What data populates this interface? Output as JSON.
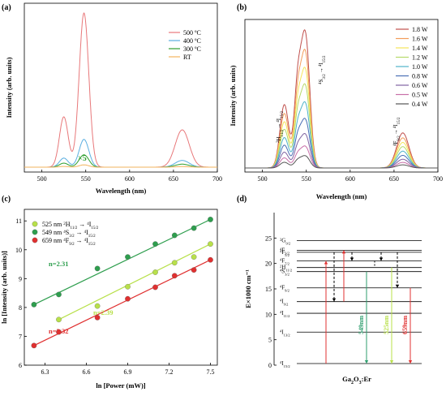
{
  "chart_data": [
    {
      "panel": "(a)",
      "type": "line",
      "xlabel": "Wavelength (nm)",
      "ylabel": "Intensity (arb. units)",
      "xlim": [
        480,
        700
      ],
      "xticks": [
        500,
        550,
        600,
        650,
        700
      ],
      "annotation": "×5",
      "legend": "top-right",
      "series": [
        {
          "name": "500 ºC",
          "color": "#e8787a",
          "scale": 1.0,
          "peaks": [
            [
              525,
              0.31,
              5
            ],
            [
              548,
              0.95,
              5.5
            ],
            [
              660,
              0.23,
              8
            ]
          ]
        },
        {
          "name": "400 ºC",
          "color": "#5aaee0",
          "scale": 0.18,
          "peaks": [
            [
              525,
              0.31,
              5
            ],
            [
              548,
              0.95,
              5.5
            ],
            [
              660,
              0.23,
              8
            ]
          ]
        },
        {
          "name": "300 ºC",
          "color": "#2e9e2e",
          "scale": 0.08,
          "peaks": [
            [
              525,
              0.31,
              5
            ],
            [
              548,
              0.95,
              5.5
            ],
            [
              660,
              0.23,
              8
            ]
          ]
        },
        {
          "name": "RT",
          "color": "#f2b35c",
          "scale": 0.015,
          "peaks": [
            [
              525,
              0.31,
              5
            ],
            [
              548,
              0.95,
              5.5
            ],
            [
              660,
              0.23,
              8
            ]
          ]
        }
      ]
    },
    {
      "panel": "(b)",
      "type": "line",
      "xlabel": "Wavelength (nm)",
      "ylabel": "Intensity (arb. units)",
      "xlim": [
        480,
        700
      ],
      "xticks": [
        500,
        550,
        600,
        650,
        700
      ],
      "legend": "top-right",
      "series": [
        {
          "name": "1.8 W",
          "color": "#c0504d",
          "scale": 1.0
        },
        {
          "name": "1.6 W",
          "color": "#f39c5a",
          "scale": 0.86
        },
        {
          "name": "1.4 W",
          "color": "#f5e65a",
          "scale": 0.73
        },
        {
          "name": "1.2 W",
          "color": "#b5d96a",
          "scale": 0.61
        },
        {
          "name": "1.0 W",
          "color": "#4fb3c9",
          "scale": 0.48
        },
        {
          "name": "0.8 W",
          "color": "#4a6fb5",
          "scale": 0.36
        },
        {
          "name": "0.6 W",
          "color": "#8064a2",
          "scale": 0.25
        },
        {
          "name": "0.5 W",
          "color": "#c86fa8",
          "scale": 0.16
        },
        {
          "name": "0.4 W",
          "color": "#555555",
          "scale": 0.09
        }
      ],
      "peaks": [
        [
          525,
          0.47,
          5
        ],
        [
          540,
          0.55,
          4
        ],
        [
          549,
          0.97,
          5
        ],
        [
          660,
          0.26,
          7
        ]
      ],
      "annotations": {
        "h_a": "2",
        "h_b": "H",
        "h_c": "11/2",
        "h_d": "→",
        "h_e": "4",
        "h_f": "I",
        "h_g": "15/2",
        "s_a": "4",
        "s_b": "S",
        "s_c": "3/2",
        "s_d": "→",
        "s_e": "4",
        "s_f": "I",
        "s_g": "15/2",
        "f_a": "4",
        "f_b": "F",
        "f_c": "9/2",
        "f_d": "→",
        "f_e": "4",
        "f_f": "I",
        "f_g": "15/2"
      }
    },
    {
      "panel": "(c)",
      "type": "scatter",
      "xlabel": "ln [Power (mW)]",
      "ylabel": "ln [Intensity (arb. units)]",
      "xlim": [
        6.15,
        7.55
      ],
      "ylim": [
        6.0,
        11.4
      ],
      "xticks": [
        6.3,
        6.6,
        6.9,
        7.2,
        7.5
      ],
      "yticks": [
        6,
        7,
        8,
        9,
        10,
        11
      ],
      "legend": "top-left",
      "x": [
        6.22,
        6.4,
        6.68,
        6.9,
        7.1,
        7.24,
        7.38,
        7.5
      ],
      "series": [
        {
          "color": "#b8e04a",
          "y": [
            null,
            7.58,
            8.05,
            8.72,
            9.22,
            9.55,
            9.75,
            10.2
          ],
          "fit": [
            [
              6.4,
              7.58
            ],
            [
              7.5,
              10.2
            ]
          ],
          "n": "n=2.39",
          "leg_a": "525 nm ",
          "leg_b": "2",
          "leg_c": "H",
          "leg_d": "11/2",
          "leg_e": " → ",
          "leg_f": "4",
          "leg_g": "I",
          "leg_h": "15/2"
        },
        {
          "color": "#2e9e4e",
          "y": [
            8.1,
            8.45,
            9.35,
            9.75,
            10.2,
            10.5,
            10.75,
            11.05
          ],
          "fit": [
            [
              6.22,
              8.1
            ],
            [
              7.5,
              11.05
            ]
          ],
          "n": "n=2.31",
          "leg_a": "549 nm ",
          "leg_b": "4",
          "leg_c": "S",
          "leg_d": "3/2",
          "leg_e": " → ",
          "leg_f": "4",
          "leg_g": "I",
          "leg_h": "15/2"
        },
        {
          "color": "#e03030",
          "y": [
            6.68,
            7.15,
            7.65,
            8.3,
            8.7,
            9.1,
            9.3,
            9.65
          ],
          "fit": [
            [
              6.22,
              6.68
            ],
            [
              7.5,
              9.65
            ]
          ],
          "n": "n=2.32",
          "leg_a": "659 nm ",
          "leg_b": "4",
          "leg_c": "F",
          "leg_d": "9/2",
          "leg_e": " → ",
          "leg_f": "4",
          "leg_g": "I",
          "leg_h": "15/2"
        }
      ]
    },
    {
      "panel": "(d)",
      "type": "diagram",
      "ylabel": "E×1000 cm⁻¹",
      "xlabel_a": "Ga",
      "xlabel_b": "2",
      "xlabel_c": "O",
      "xlabel_d": "3",
      "xlabel_e": ":Er",
      "ylim": [
        0,
        30
      ],
      "yticks": [
        0,
        5,
        10,
        15,
        20,
        25
      ],
      "levels": [
        {
          "label": "I",
          "sup": "4",
          "sub": "15/2",
          "e": 0
        },
        {
          "label": "I",
          "sup": "4",
          "sub": "13/2",
          "e": 6.5
        },
        {
          "label": "I",
          "sup": "4",
          "sub": "11/2",
          "e": 10.2
        },
        {
          "label": "I",
          "sup": "4",
          "sub": "9/2",
          "e": 12.5
        },
        {
          "label": "F",
          "sup": "4",
          "sub": "9/2",
          "e": 15.2
        },
        {
          "label": "S",
          "sup": "4",
          "sub": "3/2",
          "e": 18.4
        },
        {
          "label": "H",
          "sup": "2",
          "sub": "11/2",
          "e": 19.2
        },
        {
          "label": "F",
          "sup": "4",
          "sub": "7/2",
          "e": 20.5
        },
        {
          "label": "F",
          "sup": "4",
          "sub": "5/2",
          "e": 22.2
        },
        {
          "label": "F",
          "sup": "4",
          "sub": "3/2",
          "e": 22.6
        },
        {
          "label": "G",
          "sup": "2",
          "sub": "9/2",
          "e": 24.5
        }
      ],
      "emission_labels": [
        "549nm",
        "525nm",
        "659nm"
      ],
      "emission_colors": [
        "#2e9e6e",
        "#b8e04a",
        "#e03030"
      ],
      "excite_color": "#e03030"
    }
  ]
}
